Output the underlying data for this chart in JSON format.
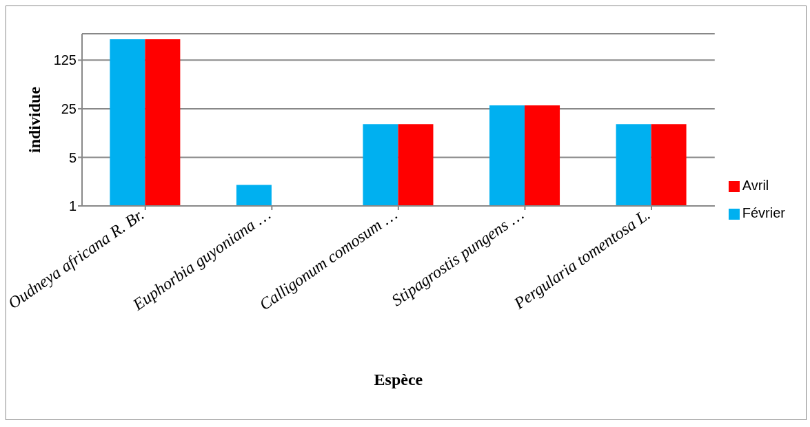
{
  "chart_data": {
    "type": "bar",
    "xlabel": "Espèce",
    "ylabel": "individue",
    "categories": [
      "Oudneya africana R. Br.",
      "Euphorbia guyoniana …",
      "Calligonum comosum …",
      "Stipagrostis pungens …",
      "Pergularia tomentosa L."
    ],
    "series": [
      {
        "name": "Février",
        "color": "#00b0f0",
        "values": [
          250,
          2,
          15,
          28,
          15
        ]
      },
      {
        "name": "Avril",
        "color": "#ff0000",
        "values": [
          250,
          1,
          15,
          28,
          15
        ]
      }
    ],
    "log": true,
    "ylim": [
      1,
      300
    ],
    "yticks": [
      1,
      5,
      25,
      125
    ],
    "grid": "y",
    "legend": "right"
  }
}
